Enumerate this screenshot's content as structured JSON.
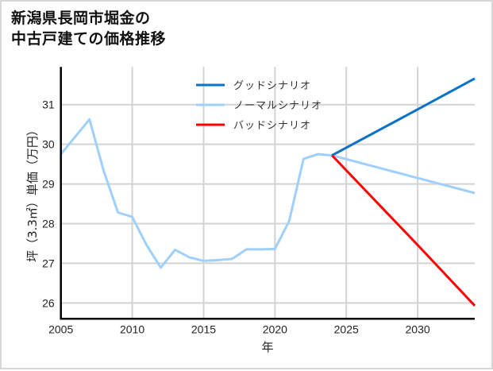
{
  "title": {
    "line1": "新潟県長岡市堀金の",
    "line2": "中古戸建ての価格推移"
  },
  "chart_data": {
    "type": "line",
    "title": "新潟県長岡市堀金の中古戸建ての価格推移",
    "xlabel": "年",
    "ylabel": "坪（3.3㎡）単価（万円）",
    "xlim": [
      2005,
      2034
    ],
    "ylim": [
      25.6,
      31.95
    ],
    "xticks": [
      2005,
      2010,
      2015,
      2020,
      2025,
      2030
    ],
    "yticks": [
      26,
      27,
      28,
      29,
      30,
      31
    ],
    "grid": true,
    "legend_position": "upper center",
    "series": [
      {
        "name": "グッドシナリオ",
        "color": "#0a72c8",
        "x": [
          2024,
          2030,
          2034
        ],
        "values": [
          29.72,
          30.88,
          31.66
        ]
      },
      {
        "name": "ノーマルシナリオ",
        "color": "#9fd0fb",
        "x": [
          2005,
          2006,
          2007,
          2008,
          2009,
          2010,
          2011,
          2012,
          2013,
          2014,
          2015,
          2016,
          2017,
          2018,
          2019,
          2020,
          2021,
          2022,
          2023,
          2024,
          2030,
          2034
        ],
        "values": [
          29.75,
          30.19,
          30.63,
          29.33,
          28.28,
          28.17,
          27.46,
          26.89,
          27.34,
          27.15,
          27.06,
          27.08,
          27.11,
          27.35,
          27.35,
          27.36,
          28.07,
          29.63,
          29.75,
          29.72,
          29.15,
          28.77
        ]
      },
      {
        "name": "バッドシナリオ",
        "color": "#ff0000",
        "x": [
          2024,
          2030,
          2034
        ],
        "values": [
          29.72,
          27.46,
          25.93
        ]
      }
    ]
  }
}
